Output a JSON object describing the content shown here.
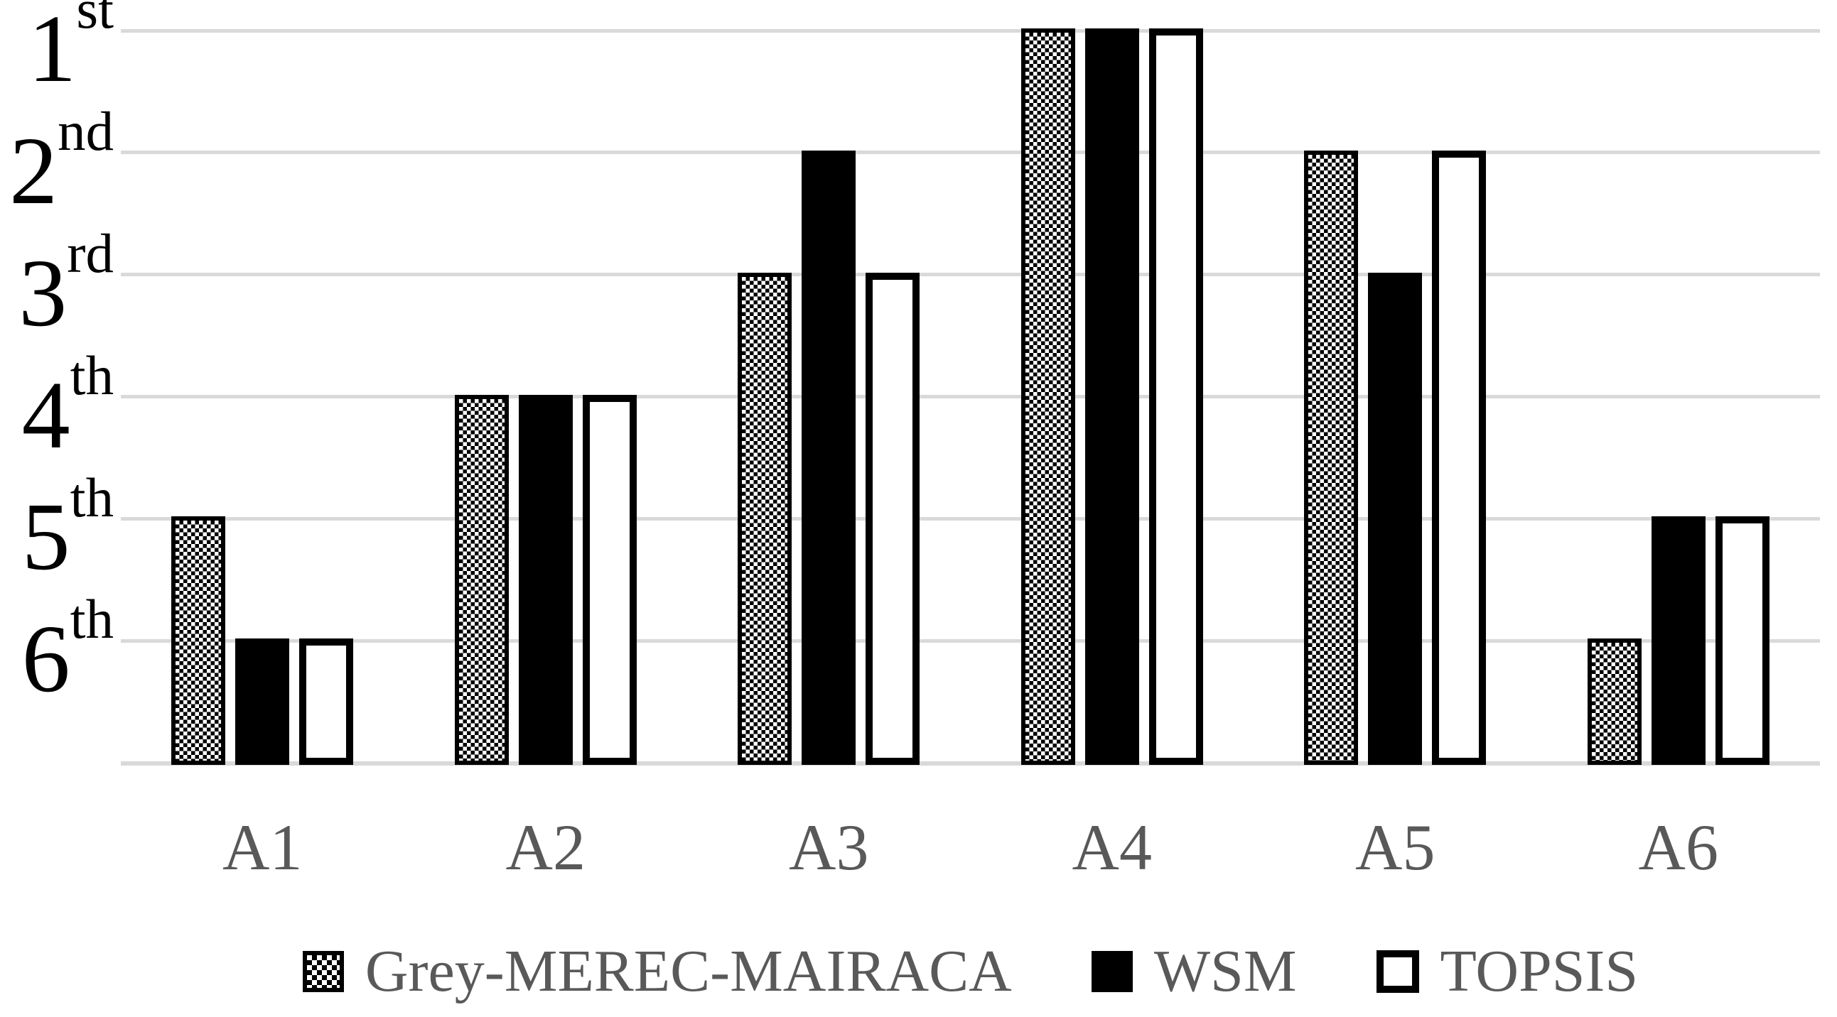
{
  "chart_data": {
    "type": "bar",
    "title": "",
    "categories": [
      "A1",
      "A2",
      "A3",
      "A4",
      "A5",
      "A6"
    ],
    "series": [
      {
        "name": "Grey-MEREC-MAIRACA",
        "style": "checker",
        "ranks": [
          5,
          4,
          3,
          1,
          2,
          6
        ]
      },
      {
        "name": "WSM",
        "style": "solid",
        "ranks": [
          6,
          4,
          2,
          1,
          3,
          5
        ]
      },
      {
        "name": "TOPSIS",
        "style": "outline",
        "ranks": [
          6,
          4,
          3,
          1,
          2,
          5
        ]
      }
    ],
    "y_axis": {
      "labels": [
        "1st",
        "2nd",
        "3rd",
        "4th",
        "5th",
        "6th"
      ],
      "order": "best-rank-at-top",
      "note": "Ordinal ranking axis; a bar of rank r rises from the baseline up to the gridline labeled r"
    },
    "x_axis": {
      "labels": [
        "A1",
        "A2",
        "A3",
        "A4",
        "A5",
        "A6"
      ]
    },
    "legend": {
      "position": "bottom",
      "entries": [
        "Grey-MEREC-MAIRACA",
        "WSM",
        "TOPSIS"
      ]
    },
    "grid": true,
    "colors": {
      "bar_black": "#000000",
      "bar_white_fill": "#ffffff",
      "gridline": "#d9d9d9",
      "rank_label_text": "#000000",
      "category_text": "#595959",
      "legend_text": "#595959",
      "background": "#ffffff"
    }
  }
}
